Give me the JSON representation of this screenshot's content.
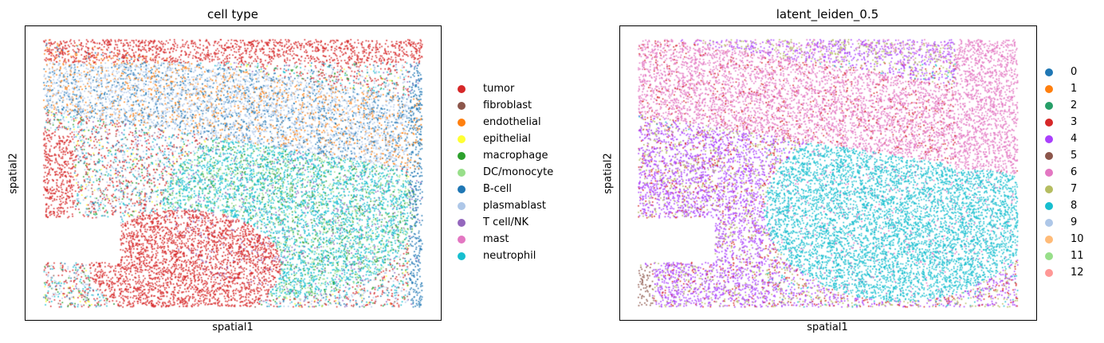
{
  "chart_data": [
    {
      "type": "scatter",
      "title": "cell type",
      "xlabel": "spatial1",
      "ylabel": "spatial2",
      "legend_placement": "right",
      "grid": false,
      "categories": [
        {
          "name": "tumor",
          "color": "#d62728"
        },
        {
          "name": "fibroblast",
          "color": "#8c564b"
        },
        {
          "name": "endothelial",
          "color": "#ff7f0e"
        },
        {
          "name": "epithelial",
          "color": "#ffff33"
        },
        {
          "name": "macrophage",
          "color": "#2ca02c"
        },
        {
          "name": "DC/monocyte",
          "color": "#98df8a"
        },
        {
          "name": "B-cell",
          "color": "#1f77b4"
        },
        {
          "name": "plasmablast",
          "color": "#aec7e8"
        },
        {
          "name": "T cell/NK",
          "color": "#9467bd"
        },
        {
          "name": "mast",
          "color": "#e377c2"
        },
        {
          "name": "neutrophil",
          "color": "#17becf"
        }
      ]
    },
    {
      "type": "scatter",
      "title": "latent_leiden_0.5",
      "xlabel": "spatial1",
      "ylabel": "spatial2",
      "legend_placement": "right",
      "grid": false,
      "categories": [
        {
          "name": "0",
          "color": "#1f77b4"
        },
        {
          "name": "1",
          "color": "#ff7f0e"
        },
        {
          "name": "2",
          "color": "#279e68"
        },
        {
          "name": "3",
          "color": "#d62728"
        },
        {
          "name": "4",
          "color": "#aa40fc"
        },
        {
          "name": "5",
          "color": "#8c564b"
        },
        {
          "name": "6",
          "color": "#e377c2"
        },
        {
          "name": "7",
          "color": "#b5bd61"
        },
        {
          "name": "8",
          "color": "#17becf"
        },
        {
          "name": "9",
          "color": "#aec7e8"
        },
        {
          "name": "10",
          "color": "#ffbb78"
        },
        {
          "name": "11",
          "color": "#98df8a"
        },
        {
          "name": "12",
          "color": "#ff9896"
        }
      ]
    }
  ]
}
